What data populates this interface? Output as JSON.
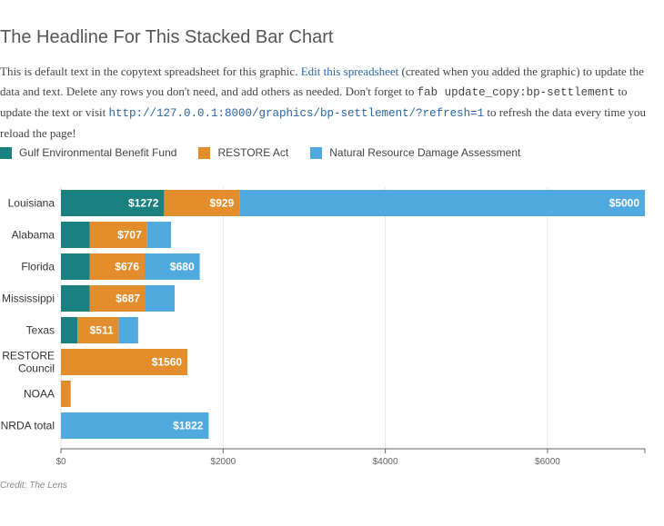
{
  "page": {
    "title": "The Headline For This Stacked Bar Chart",
    "intro": {
      "text1": "This is default text in the copytext spreadsheet for this graphic. ",
      "link_text": "Edit this spreadsheet",
      "text2": " (created when you added the graphic) to update the data and text. Delete any rows you don't need, and add others as needed. Don't forget to ",
      "code1": "fab update_copy:bp-settlement",
      "text3": " to update the text or visit ",
      "code2": "http://127.0.0.1:8000/graphics/bp-settlement/?refresh=1",
      "text4": " to refresh the data every time you reload the page!"
    },
    "credit": "Credit: The Lens"
  },
  "colors": {
    "gulf": "#1a8080",
    "restore": "#e38d2c",
    "nrda": "#51aadf",
    "grid": "#e6e6e6",
    "axis": "#666666",
    "label": "#333333"
  },
  "chart_data": {
    "type": "bar",
    "orientation": "horizontal",
    "stacked": true,
    "categories": [
      "Louisiana",
      "Alabama",
      "Florida",
      "Mississippi",
      "Texas",
      "RESTORE Council",
      "NOAA",
      "NRDA total"
    ],
    "series": [
      {
        "name": "Gulf Environmental Benefit Fund",
        "color_key": "gulf",
        "values": [
          1272,
          356,
          356,
          356,
          203,
          0,
          0,
          0
        ]
      },
      {
        "name": "RESTORE Act",
        "color_key": "restore",
        "values": [
          929,
          707,
          676,
          687,
          511,
          1560,
          120,
          0
        ]
      },
      {
        "name": "Natural Resource Damage Assessment",
        "color_key": "nrda",
        "values": [
          5000,
          295,
          680,
          359,
          238,
          0,
          0,
          1822
        ]
      }
    ],
    "value_labels": [
      [
        "$1272",
        "$929",
        "$5000"
      ],
      [
        "",
        "$707",
        ""
      ],
      [
        "",
        "$676",
        "$680"
      ],
      [
        "",
        "$687",
        ""
      ],
      [
        "",
        "$511",
        ""
      ],
      [
        "",
        "$1560",
        ""
      ],
      [
        "",
        "",
        ""
      ],
      [
        "",
        "",
        "$1822"
      ]
    ],
    "xlim": [
      0,
      7201
    ],
    "xticks": [
      0,
      2000,
      4000,
      6000
    ],
    "xtick_labels": [
      "$0",
      "$2000",
      "$4000",
      "$6000"
    ],
    "grid": true,
    "legend_position": "top-left"
  }
}
